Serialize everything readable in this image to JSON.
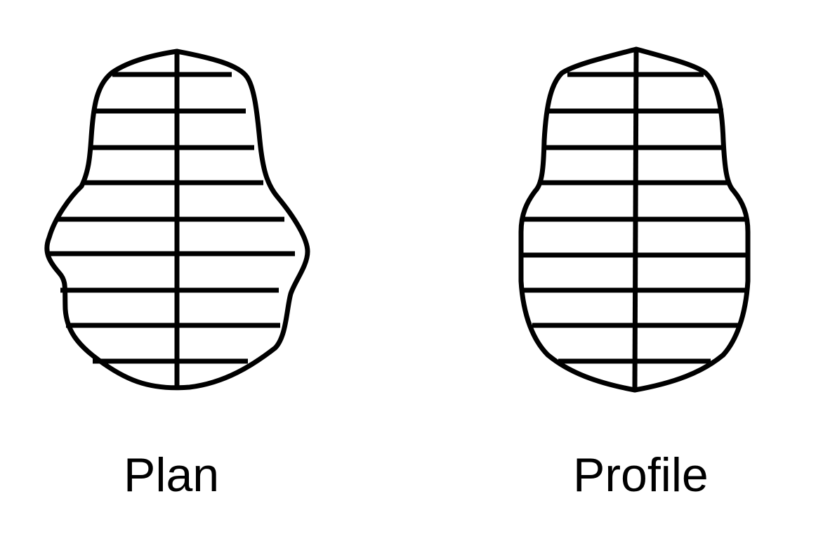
{
  "figures": [
    {
      "id": "plan",
      "caption": "Plan"
    },
    {
      "id": "profile",
      "caption": "Profile"
    }
  ],
  "colors": {
    "stroke": "#000000",
    "background": "#ffffff"
  }
}
